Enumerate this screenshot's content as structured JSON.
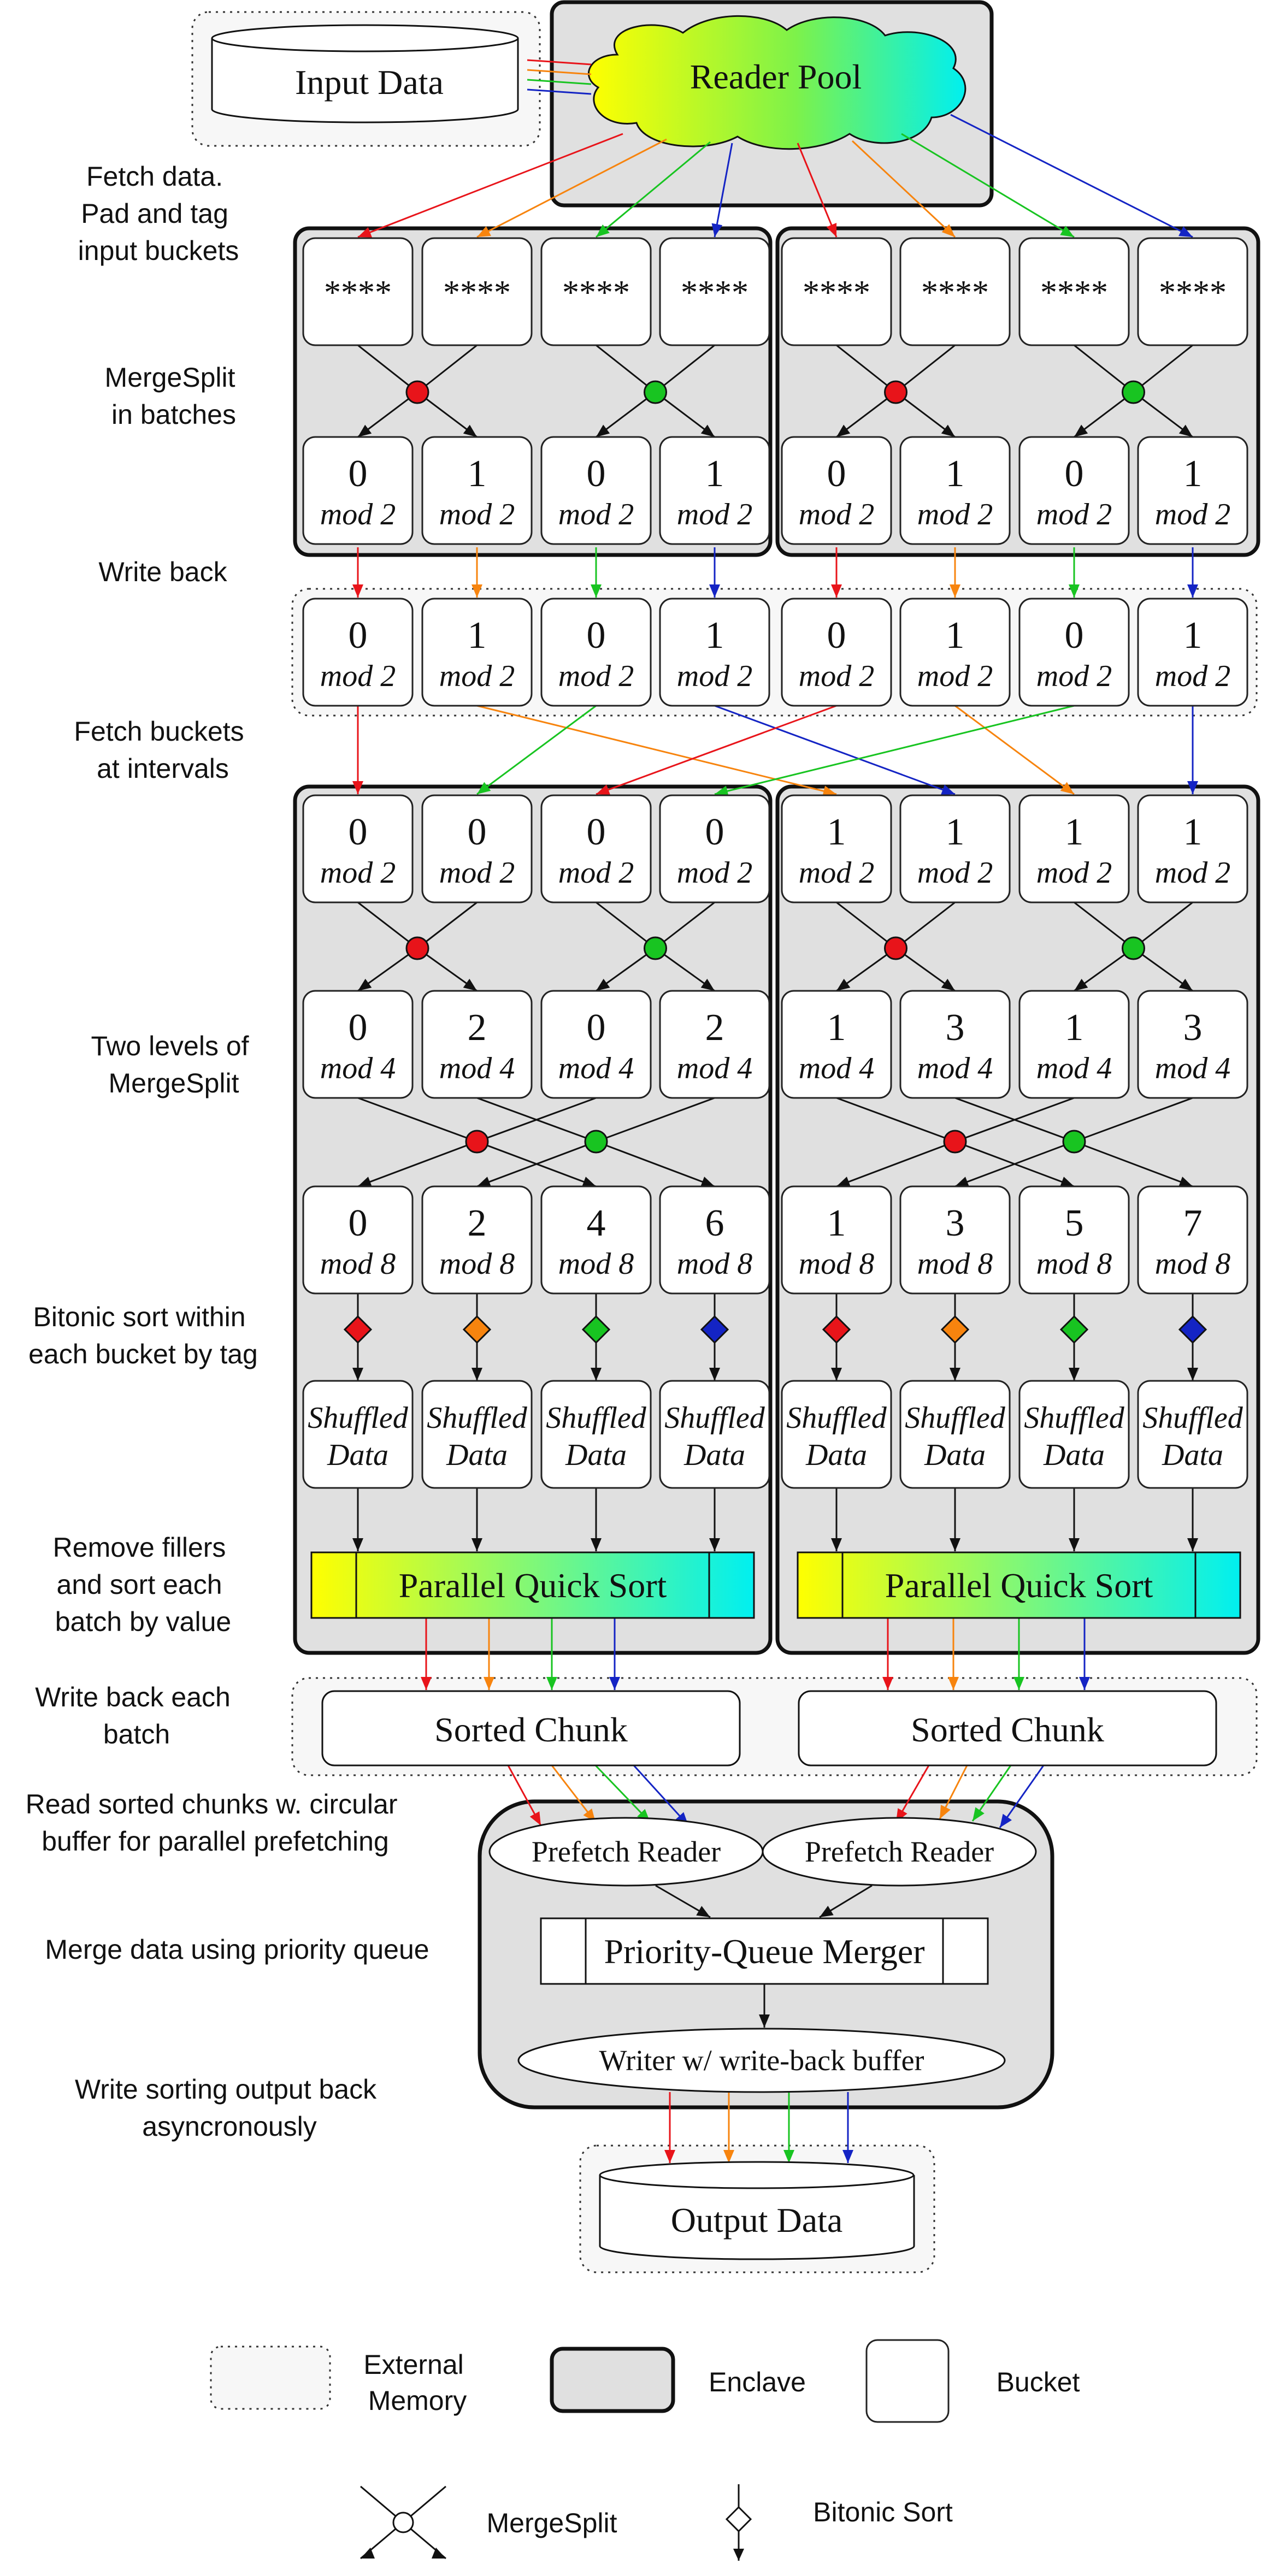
{
  "top": {
    "input_data": "Input Data",
    "reader_pool": "Reader Pool"
  },
  "steps": {
    "fetch_pad": [
      "Fetch data.",
      "Pad and tag",
      "input buckets"
    ],
    "mergesplit_batches": [
      "MergeSplit",
      "in batches"
    ],
    "write_back": [
      "Write back"
    ],
    "fetch_intervals": [
      "Fetch buckets",
      "at intervals"
    ],
    "two_levels": [
      "Two levels of",
      "MergeSplit"
    ],
    "bitonic_within": [
      "Bitonic sort within",
      "each bucket by tag"
    ],
    "remove_fillers": [
      "Remove fillers",
      "and sort each",
      "batch by value"
    ],
    "write_back_batch": [
      "Write back each",
      "batch"
    ],
    "read_sorted": [
      "Read sorted chunks w. circular",
      "buffer for parallel prefetching"
    ],
    "merge_pq": [
      "Merge data using priority queue"
    ],
    "write_output": [
      "Write sorting output back",
      "asyncronously"
    ]
  },
  "buckets": {
    "input": "****",
    "mod_word": {
      "m2": "mod 2",
      "m4": "mod 4",
      "m8": "mod 8"
    },
    "row2_nums": [
      "0",
      "1",
      "0",
      "1",
      "0",
      "1",
      "0",
      "1"
    ],
    "row3_nums": [
      "0",
      "1",
      "0",
      "1",
      "0",
      "1",
      "0",
      "1"
    ],
    "row4_nums": [
      "0",
      "0",
      "0",
      "0",
      "1",
      "1",
      "1",
      "1"
    ],
    "row5_nums": [
      "0",
      "2",
      "0",
      "2",
      "1",
      "3",
      "1",
      "3"
    ],
    "row6_nums": [
      "0",
      "2",
      "4",
      "6",
      "1",
      "3",
      "5",
      "7"
    ],
    "shuffled": [
      "Shuffled",
      "Data"
    ]
  },
  "components": {
    "parallel_quick_sort": "Parallel Quick Sort",
    "sorted_chunk": "Sorted Chunk",
    "prefetch_reader": "Prefetch Reader",
    "pq_merger": "Priority-Queue Merger",
    "writer": "Writer w/ write-back buffer",
    "output_data": "Output Data"
  },
  "legend": {
    "external_memory": [
      "External",
      "Memory"
    ],
    "enclave": "Enclave",
    "bucket": "Bucket",
    "mergesplit": "MergeSplit",
    "bitonic_sort": "Bitonic Sort"
  },
  "colors": {
    "red": "#e8141a",
    "orange": "#f7840e",
    "green": "#18c421",
    "blue": "#1424c4",
    "enclave_fill": "#e0e0e0",
    "pqs_yellow": "#ffff00",
    "pqs_cyan": "#00f0f0"
  }
}
